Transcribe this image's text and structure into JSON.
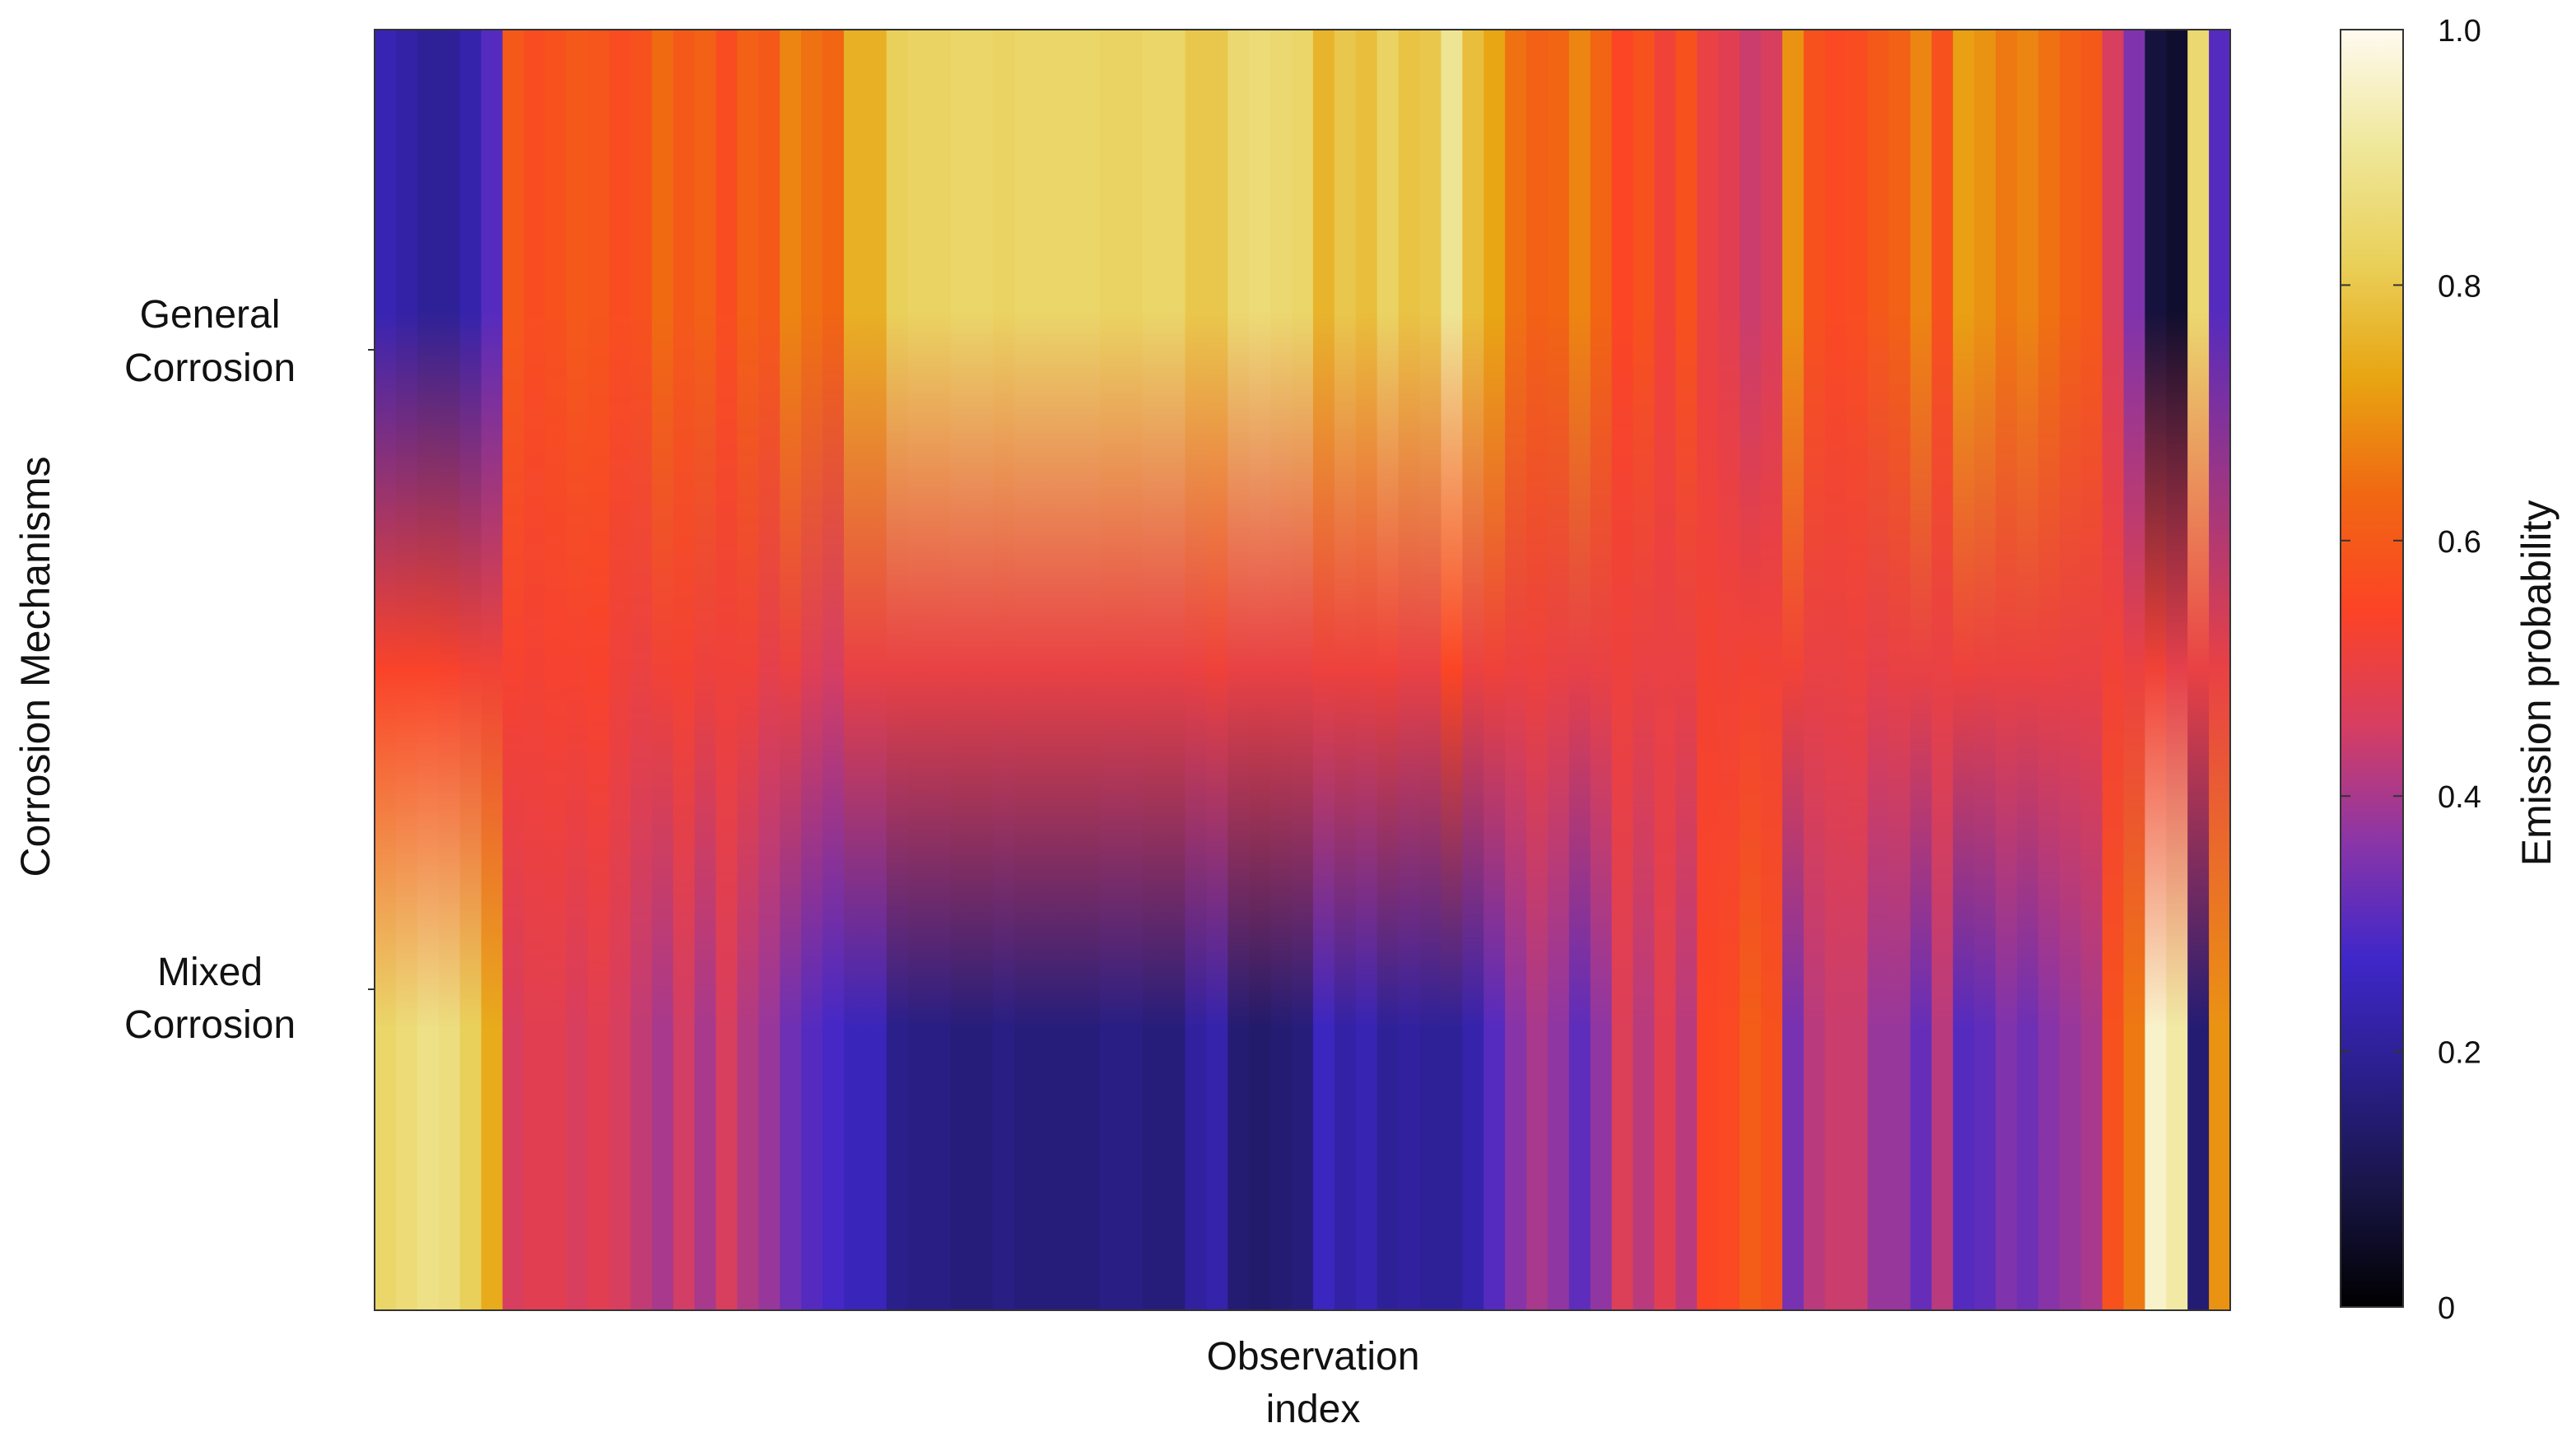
{
  "chart_data": {
    "type": "heatmap",
    "title": "",
    "xlabel_lines": [
      "Observation",
      "index"
    ],
    "ylabel": "Corrosion Mechanisms",
    "rows": [
      {
        "label_lines": [
          "General",
          "Corrosion"
        ]
      },
      {
        "label_lines": [
          "Mixed",
          "Corrosion"
        ]
      }
    ],
    "x_tick_labels": [],
    "colorbar": {
      "label": "Emission probability",
      "range": [
        0,
        1
      ],
      "ticks": [
        0,
        0.2,
        0.4,
        0.6,
        0.8,
        1.0
      ],
      "tick_labels": [
        "0",
        "0.2",
        "0.4",
        "0.6",
        "0.8",
        "1.0"
      ],
      "colormap": [
        "#000000",
        "#181545",
        "#2a1f8c",
        "#3f27c9",
        "#8a35a8",
        "#d63e62",
        "#fc4326",
        "#f06812",
        "#e8a512",
        "#e9d05a",
        "#efe79a",
        "#fffaf0"
      ]
    },
    "values_general_corrosion": [
      0.24,
      0.22,
      0.2,
      0.2,
      0.23,
      0.3,
      0.6,
      0.57,
      0.58,
      0.6,
      0.59,
      0.57,
      0.58,
      0.64,
      0.6,
      0.62,
      0.57,
      0.62,
      0.6,
      0.68,
      0.65,
      0.63,
      0.75,
      0.75,
      0.82,
      0.83,
      0.83,
      0.84,
      0.84,
      0.83,
      0.84,
      0.84,
      0.84,
      0.84,
      0.83,
      0.83,
      0.84,
      0.84,
      0.8,
      0.8,
      0.85,
      0.86,
      0.85,
      0.84,
      0.76,
      0.8,
      0.78,
      0.83,
      0.79,
      0.8,
      0.9,
      0.78,
      0.73,
      0.65,
      0.62,
      0.63,
      0.68,
      0.63,
      0.55,
      0.58,
      0.52,
      0.58,
      0.5,
      0.48,
      0.44,
      0.46,
      0.7,
      0.58,
      0.56,
      0.57,
      0.6,
      0.62,
      0.68,
      0.58,
      0.72,
      0.7,
      0.66,
      0.68,
      0.65,
      0.62,
      0.6,
      0.46,
      0.35,
      0.08,
      0.06,
      0.85,
      0.3
    ],
    "values_mixed_corrosion": [
      0.84,
      0.86,
      0.88,
      0.87,
      0.82,
      0.74,
      0.46,
      0.48,
      0.48,
      0.46,
      0.48,
      0.46,
      0.43,
      0.4,
      0.45,
      0.4,
      0.46,
      0.41,
      0.38,
      0.33,
      0.3,
      0.28,
      0.25,
      0.25,
      0.18,
      0.17,
      0.17,
      0.16,
      0.16,
      0.17,
      0.16,
      0.16,
      0.16,
      0.16,
      0.17,
      0.17,
      0.16,
      0.16,
      0.21,
      0.23,
      0.15,
      0.14,
      0.15,
      0.16,
      0.26,
      0.22,
      0.24,
      0.2,
      0.21,
      0.2,
      0.2,
      0.23,
      0.3,
      0.36,
      0.4,
      0.37,
      0.31,
      0.37,
      0.47,
      0.42,
      0.48,
      0.42,
      0.55,
      0.56,
      0.61,
      0.58,
      0.34,
      0.42,
      0.44,
      0.44,
      0.38,
      0.38,
      0.32,
      0.42,
      0.3,
      0.31,
      0.35,
      0.33,
      0.36,
      0.38,
      0.4,
      0.58,
      0.66,
      0.96,
      0.92,
      0.15,
      0.7
    ]
  }
}
